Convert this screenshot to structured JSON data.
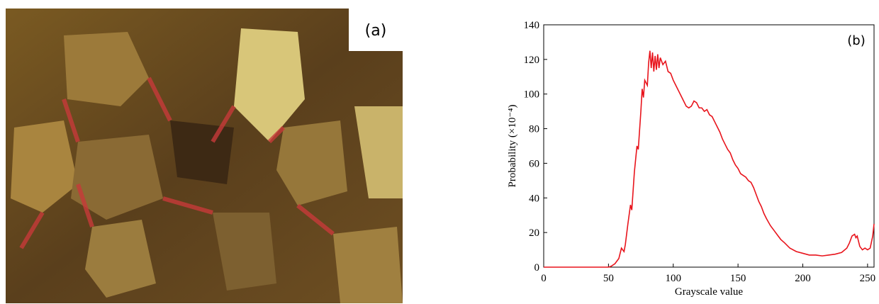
{
  "panel_a": {
    "label": "(a)"
  },
  "chart_data": {
    "type": "line",
    "annotation": "(b)",
    "xlabel": "Grayscale value",
    "ylabel": "Probability (×10⁻⁴)",
    "x": [
      0,
      10,
      20,
      30,
      40,
      50,
      52,
      55,
      58,
      60,
      62,
      63,
      65,
      67,
      68,
      70,
      72,
      73,
      75,
      76,
      77,
      78,
      80,
      81,
      82,
      83,
      84,
      85,
      86,
      87,
      88,
      89,
      90,
      92,
      94,
      96,
      98,
      100,
      102,
      104,
      106,
      108,
      110,
      112,
      114,
      116,
      118,
      120,
      122,
      124,
      126,
      128,
      130,
      132,
      134,
      136,
      138,
      140,
      142,
      144,
      146,
      148,
      150,
      152,
      154,
      156,
      158,
      160,
      162,
      164,
      166,
      168,
      170,
      172,
      175,
      178,
      180,
      183,
      186,
      190,
      195,
      200,
      205,
      210,
      215,
      220,
      225,
      230,
      234,
      236,
      238,
      240,
      241,
      242,
      244,
      246,
      248,
      250,
      252,
      254,
      255
    ],
    "series": [
      {
        "color": "#e8141c",
        "values": [
          0,
          0,
          0,
          0,
          0,
          0,
          0.5,
          2,
          5,
          11,
          9,
          13,
          25,
          36,
          33,
          55,
          70,
          68,
          90,
          103,
          98,
          108,
          105,
          118,
          125,
          115,
          124,
          113,
          122,
          114,
          123,
          115,
          121,
          117,
          119,
          113,
          112,
          108,
          105,
          102,
          99,
          96,
          93,
          92,
          93,
          96,
          95,
          92,
          92,
          90,
          91,
          88,
          87,
          84,
          81,
          78,
          74,
          71,
          68,
          66,
          62,
          59,
          57,
          54,
          53,
          52,
          50,
          49,
          46,
          42,
          38,
          35,
          31,
          28,
          24,
          21,
          19,
          16,
          14,
          11,
          9,
          8,
          7,
          7,
          6.5,
          7,
          7.5,
          8.5,
          11,
          14,
          18,
          19,
          17,
          18,
          12,
          10,
          11,
          10,
          11,
          18,
          25
        ]
      }
    ],
    "xlim": [
      0,
      255
    ],
    "ylim": [
      0,
      140
    ],
    "xticks": [
      0,
      50,
      100,
      150,
      200,
      250
    ],
    "yticks": [
      0,
      20,
      40,
      60,
      80,
      100,
      120,
      140
    ]
  }
}
